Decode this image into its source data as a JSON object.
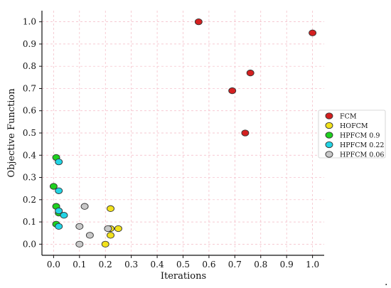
{
  "chart_data": {
    "type": "scatter",
    "title": "",
    "xlabel": "Iterations",
    "ylabel": "Objective Function",
    "xlim": [
      -0.045,
      1.045
    ],
    "ylim": [
      -0.05,
      1.05
    ],
    "x_ticks": [
      "0.0",
      "0.1",
      "0.2",
      "0.3",
      "0.4",
      "0.5",
      "0.6",
      "0.7",
      "0.8",
      "0.9",
      "1.0"
    ],
    "y_ticks": [
      "0.0",
      "0.1",
      "0.2",
      "0.3",
      "0.4",
      "0.5",
      "0.6",
      "0.7",
      "0.8",
      "0.9",
      "1.0"
    ],
    "grid": true,
    "legend_position": "right",
    "series": [
      {
        "name": "FCM",
        "color": "#d42020",
        "x": [
          0.56,
          1.0,
          0.76,
          0.69,
          0.74
        ],
        "y": [
          1.0,
          0.95,
          0.77,
          0.69,
          0.5
        ]
      },
      {
        "name": "HOFCM",
        "color": "#f2e21c",
        "x": [
          0.22,
          0.22,
          0.25,
          0.22,
          0.2
        ],
        "y": [
          0.16,
          0.07,
          0.07,
          0.04,
          0.0
        ]
      },
      {
        "name": "HPFCM 0.9",
        "color": "#1fd11f",
        "x": [
          0.01,
          0.0,
          0.01,
          0.02,
          0.01
        ],
        "y": [
          0.39,
          0.26,
          0.17,
          0.14,
          0.09
        ]
      },
      {
        "name": "HPFCM 0.22",
        "color": "#22d4e4",
        "x": [
          0.02,
          0.02,
          0.02,
          0.04,
          0.02
        ],
        "y": [
          0.37,
          0.24,
          0.15,
          0.13,
          0.08
        ]
      },
      {
        "name": "HPFCM 0.06",
        "color": "#c8c8c8",
        "x": [
          0.12,
          0.1,
          0.21,
          0.14,
          0.1
        ],
        "y": [
          0.17,
          0.08,
          0.07,
          0.04,
          0.0
        ]
      }
    ]
  },
  "trailing_mark": "."
}
